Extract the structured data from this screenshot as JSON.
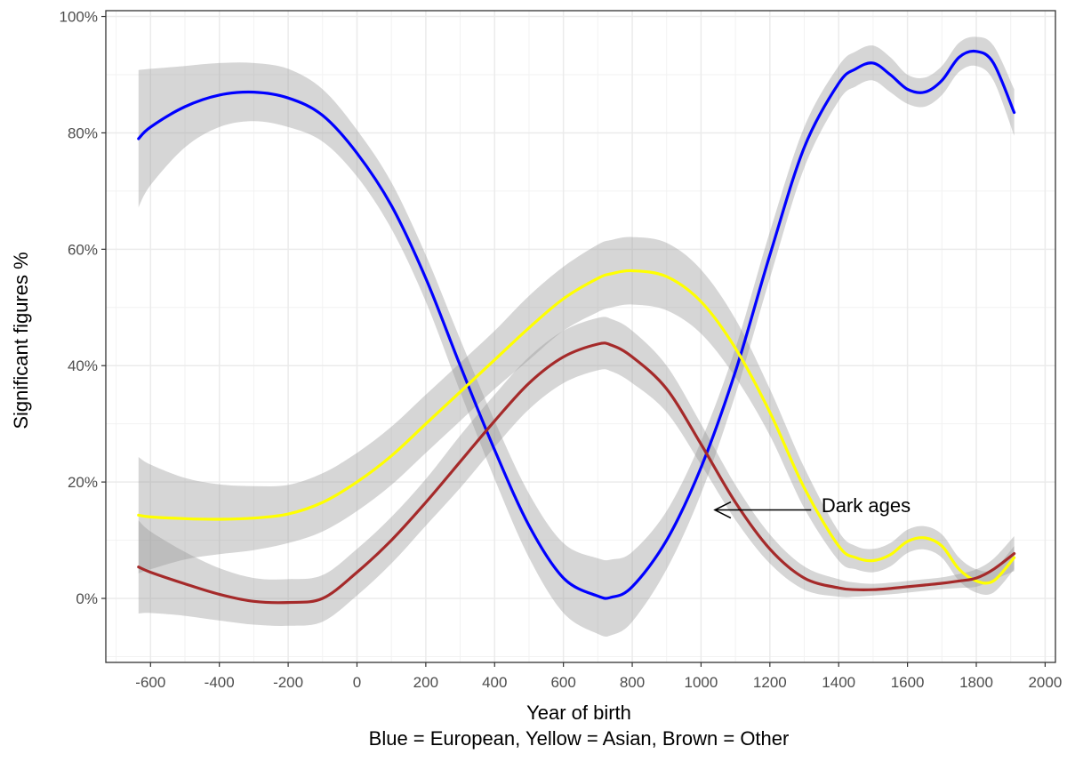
{
  "chart_data": {
    "type": "line",
    "xlabel": "Year of birth",
    "caption": "Blue = European, Yellow = Asian, Brown = Other",
    "ylabel": "Significant figures %",
    "xlim": [
      -730,
      2030
    ],
    "ylim": [
      -0.11,
      1.01
    ],
    "x_ticks": [
      -600,
      -400,
      -200,
      0,
      200,
      400,
      600,
      800,
      1000,
      1200,
      1400,
      1600,
      1800,
      2000
    ],
    "x_tick_labels": [
      "-600",
      "-400",
      "-200",
      "0",
      "200",
      "400",
      "600",
      "800",
      "1000",
      "1200",
      "1400",
      "1600",
      "1800",
      "2000"
    ],
    "y_ticks": [
      0,
      0.2,
      0.4,
      0.6,
      0.8,
      1.0
    ],
    "y_tick_labels": [
      "0%",
      "20%",
      "40%",
      "60%",
      "80%",
      "100%"
    ],
    "grid": true,
    "legend": "none",
    "x": [
      -635,
      -600,
      -500,
      -400,
      -300,
      -200,
      -100,
      0,
      100,
      200,
      300,
      400,
      500,
      600,
      700,
      740,
      800,
      900,
      1000,
      1100,
      1200,
      1300,
      1400,
      1450,
      1500,
      1550,
      1600,
      1650,
      1700,
      1750,
      1800,
      1850,
      1910
    ],
    "series": [
      {
        "color": "#0000ff",
        "values": [
          0.79,
          0.81,
          0.845,
          0.865,
          0.87,
          0.86,
          0.83,
          0.765,
          0.675,
          0.55,
          0.4,
          0.255,
          0.125,
          0.035,
          0.004,
          0.002,
          0.02,
          0.1,
          0.225,
          0.39,
          0.59,
          0.775,
          0.885,
          0.91,
          0.92,
          0.9,
          0.875,
          0.87,
          0.89,
          0.93,
          0.94,
          0.92,
          0.835
        ],
        "band_width": [
          0.118,
          0.1,
          0.07,
          0.055,
          0.05,
          0.05,
          0.045,
          0.04,
          0.04,
          0.04,
          0.045,
          0.05,
          0.055,
          0.06,
          0.065,
          0.065,
          0.06,
          0.05,
          0.045,
          0.04,
          0.04,
          0.035,
          0.03,
          0.03,
          0.03,
          0.03,
          0.025,
          0.025,
          0.025,
          0.025,
          0.025,
          0.03,
          0.04
        ]
      },
      {
        "color": "#ffff00",
        "values": [
          0.143,
          0.14,
          0.137,
          0.136,
          0.138,
          0.145,
          0.165,
          0.2,
          0.245,
          0.3,
          0.355,
          0.41,
          0.465,
          0.515,
          0.55,
          0.558,
          0.563,
          0.553,
          0.51,
          0.43,
          0.32,
          0.19,
          0.09,
          0.07,
          0.065,
          0.075,
          0.098,
          0.104,
          0.09,
          0.05,
          0.03,
          0.03,
          0.07
        ],
        "band_width": [
          0.1,
          0.09,
          0.07,
          0.06,
          0.055,
          0.05,
          0.05,
          0.05,
          0.05,
          0.05,
          0.05,
          0.05,
          0.055,
          0.055,
          0.058,
          0.058,
          0.058,
          0.058,
          0.055,
          0.05,
          0.04,
          0.035,
          0.025,
          0.02,
          0.02,
          0.02,
          0.02,
          0.02,
          0.02,
          0.02,
          0.02,
          0.02,
          0.02
        ]
      },
      {
        "color": "#a52a2a",
        "values": [
          0.054,
          0.045,
          0.025,
          0.007,
          -0.005,
          -0.007,
          0.0,
          0.045,
          0.1,
          0.165,
          0.235,
          0.305,
          0.37,
          0.415,
          0.437,
          0.435,
          0.415,
          0.36,
          0.265,
          0.165,
          0.085,
          0.035,
          0.018,
          0.015,
          0.015,
          0.017,
          0.02,
          0.023,
          0.026,
          0.03,
          0.035,
          0.05,
          0.077
        ],
        "band_width": [
          0.08,
          0.07,
          0.055,
          0.045,
          0.04,
          0.04,
          0.04,
          0.04,
          0.04,
          0.04,
          0.045,
          0.045,
          0.045,
          0.045,
          0.045,
          0.045,
          0.045,
          0.04,
          0.035,
          0.03,
          0.025,
          0.02,
          0.015,
          0.012,
          0.01,
          0.01,
          0.01,
          0.01,
          0.01,
          0.012,
          0.015,
          0.018,
          0.03
        ]
      }
    ],
    "band_color": "#999999",
    "annotation": {
      "text": "Dark ages",
      "x": 1350,
      "y": 0.148,
      "arrow_from_x": 1320,
      "arrow_to_x": 1040,
      "arrow_y": 0.152
    }
  }
}
